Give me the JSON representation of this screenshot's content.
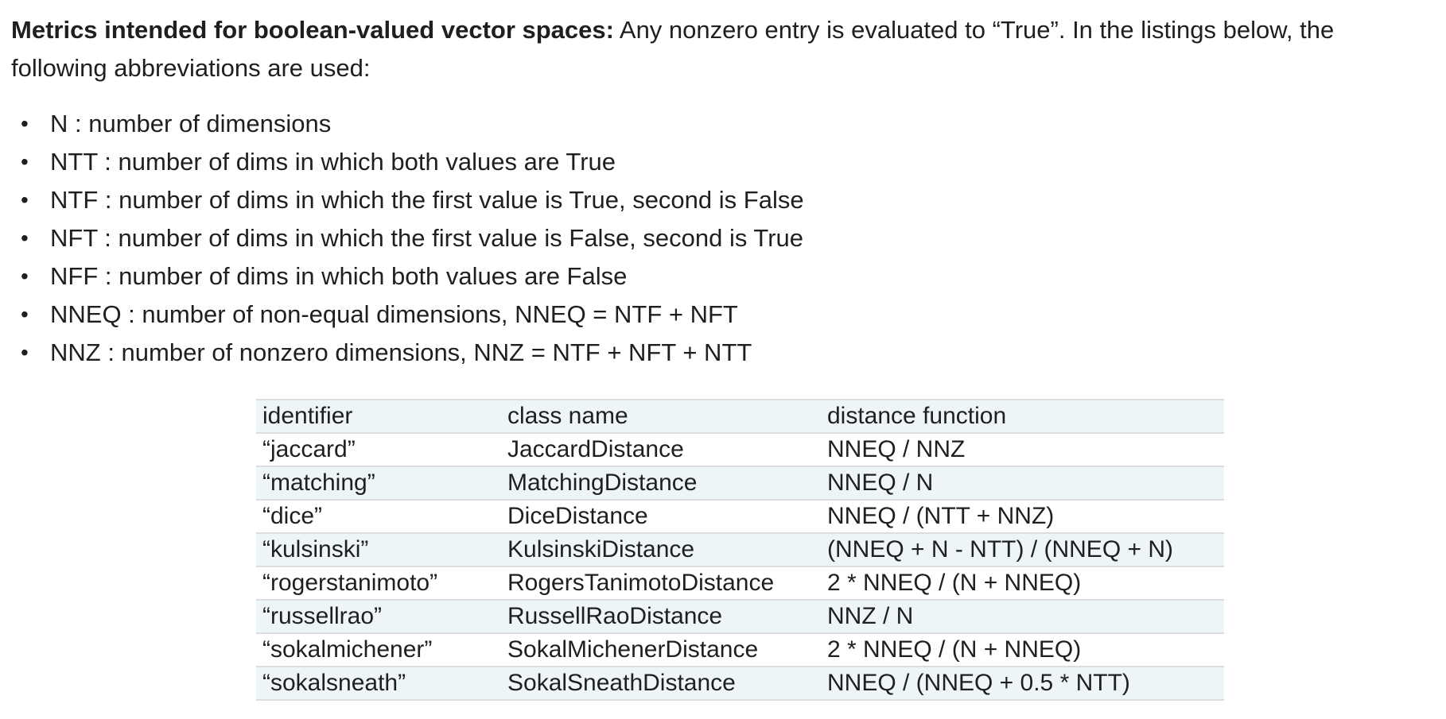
{
  "intro": {
    "bold_lead": "Metrics intended for boolean-valued vector spaces:",
    "text": " Any nonzero entry is evaluated to “True”. In the listings below, the following abbreviations are used:"
  },
  "abbreviations": [
    "N : number of dimensions",
    "NTT : number of dims in which both values are True",
    "NTF : number of dims in which the first value is True, second is False",
    "NFT : number of dims in which the first value is False, second is True",
    "NFF : number of dims in which both values are False",
    "NNEQ : number of non-equal dimensions, NNEQ = NTF + NFT",
    "NNZ : number of nonzero dimensions, NNZ = NTF + NFT + NTT"
  ],
  "bullet_glyph": "•",
  "table": {
    "headers": [
      "identifier",
      "class name",
      "distance function"
    ],
    "rows": [
      [
        "“jaccard”",
        "JaccardDistance",
        "NNEQ / NNZ"
      ],
      [
        "“matching”",
        "MatchingDistance",
        "NNEQ / N"
      ],
      [
        "“dice”",
        "DiceDistance",
        "NNEQ / (NTT + NNZ)"
      ],
      [
        "“kulsinski”",
        "KulsinskiDistance",
        "(NNEQ + N - NTT) / (NNEQ + N)"
      ],
      [
        "“rogerstanimoto”",
        "RogersTanimotoDistance",
        "2 * NNEQ / (N + NNEQ)"
      ],
      [
        "“russellrao”",
        "RussellRaoDistance",
        "NNZ / N"
      ],
      [
        "“sokalmichener”",
        "SokalMichenerDistance",
        "2 * NNEQ / (N + NNEQ)"
      ],
      [
        "“sokalsneath”",
        "SokalSneathDistance",
        "NNEQ / (NNEQ + 0.5 * NTT)"
      ]
    ]
  },
  "colors": {
    "text": "#1f1f1f",
    "row_shade": "#eef5f9",
    "rule": "#d9dde2"
  }
}
